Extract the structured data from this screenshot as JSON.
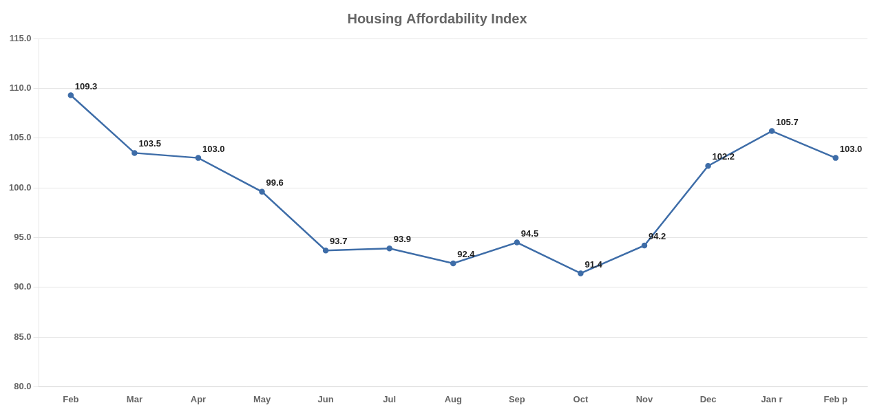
{
  "chart_data": {
    "type": "line",
    "title": "Housing Affordability Index",
    "categories": [
      "Feb",
      "Mar",
      "Apr",
      "May",
      "Jun",
      "Jul",
      "Aug",
      "Sep",
      "Oct",
      "Nov",
      "Dec",
      "Jan r",
      "Feb p"
    ],
    "values": [
      109.3,
      103.5,
      103.0,
      99.6,
      93.7,
      93.9,
      92.4,
      94.5,
      91.4,
      94.2,
      102.2,
      105.7,
      103.0
    ],
    "value_labels": [
      "109.3",
      "103.5",
      "103.0",
      "99.6",
      "93.7",
      "93.9",
      "92.4",
      "94.5",
      "91.4",
      "94.2",
      "102.2",
      "105.7",
      "103.0"
    ],
    "data_labels": true,
    "color": "#3E6DA8",
    "ylim": [
      80.0,
      115.0
    ],
    "yticks": [
      {
        "value": 80,
        "label": "80.0"
      },
      {
        "value": 85,
        "label": "85.0"
      },
      {
        "value": 90,
        "label": "90.0"
      },
      {
        "value": 95,
        "label": "95.0"
      },
      {
        "value": 100,
        "label": "100.0"
      },
      {
        "value": 105,
        "label": "105.0"
      },
      {
        "value": 110,
        "label": "110.0"
      },
      {
        "value": 115,
        "label": "115.0"
      }
    ],
    "grid": true
  }
}
